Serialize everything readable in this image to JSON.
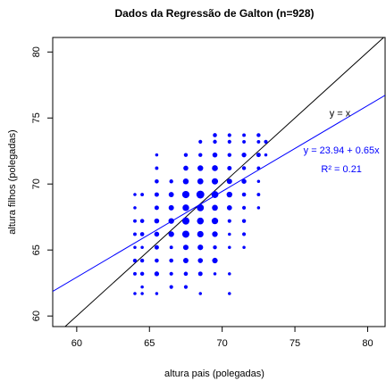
{
  "chart_data": {
    "type": "scatter",
    "title": "Dados da Regressão de Galton (n=928)",
    "x_label": "altura pais (polegadas)",
    "y_label": "altura filhos (polegadas)",
    "xlim": [
      58.35,
      81.2
    ],
    "ylim": [
      59.2,
      81.1
    ],
    "xticks": [
      60,
      65,
      70,
      75,
      80
    ],
    "yticks": [
      60,
      65,
      70,
      75,
      80
    ],
    "series": [
      {
        "color": "#0000ff",
        "x": [
          69.5,
          70.5,
          71.5,
          72.5,
          68.5,
          69.5,
          70.5,
          71.5,
          72.5,
          73,
          65.5,
          67.5,
          68.5,
          69.5,
          70.5,
          71.5,
          72.5,
          73,
          65.5,
          67.5,
          68.5,
          69.5,
          70.5,
          71.5,
          72.5,
          65.5,
          66.5,
          67.5,
          68.5,
          69.5,
          70.5,
          71.5,
          72.5,
          64,
          64.5,
          65.5,
          66.5,
          67.5,
          68.5,
          69.5,
          70.5,
          71.5,
          72.5,
          64,
          65.5,
          66.5,
          67.5,
          68.5,
          69.5,
          70.5,
          71.5,
          72.5,
          64,
          64.5,
          65.5,
          66.5,
          67.5,
          68.5,
          69.5,
          70.5,
          71.5,
          64,
          64.5,
          65.5,
          66.5,
          67.5,
          68.5,
          69.5,
          70.5,
          71.5,
          64,
          64.5,
          65.5,
          66.5,
          67.5,
          68.5,
          69.5,
          70.5,
          71.5,
          64,
          64.5,
          65.5,
          66.5,
          67.5,
          68.5,
          69.5,
          64,
          64.5,
          65.5,
          66.5,
          67.5,
          68.5,
          69.5,
          70.5,
          64.5,
          66.5,
          67.5,
          64,
          64.5,
          65.5,
          68.5,
          70.5
        ],
        "values": [
          73.7,
          73.7,
          73.7,
          73.7,
          73.2,
          73.2,
          73.2,
          73.2,
          73.2,
          73.2,
          72.2,
          72.2,
          72.2,
          72.2,
          72.2,
          72.2,
          72.2,
          72.2,
          71.2,
          71.2,
          71.2,
          71.2,
          71.2,
          71.2,
          71.2,
          70.2,
          70.2,
          70.2,
          70.2,
          70.2,
          70.2,
          70.2,
          70.2,
          69.2,
          69.2,
          69.2,
          69.2,
          69.2,
          69.2,
          69.2,
          69.2,
          69.2,
          69.2,
          68.2,
          68.2,
          68.2,
          68.2,
          68.2,
          68.2,
          68.2,
          68.2,
          68.2,
          67.2,
          67.2,
          67.2,
          67.2,
          67.2,
          67.2,
          67.2,
          67.2,
          67.2,
          66.2,
          66.2,
          66.2,
          66.2,
          66.2,
          66.2,
          66.2,
          66.2,
          66.2,
          65.2,
          65.2,
          65.2,
          65.2,
          65.2,
          65.2,
          65.2,
          65.2,
          65.2,
          64.2,
          64.2,
          64.2,
          64.2,
          64.2,
          64.2,
          64.2,
          63.2,
          63.2,
          63.2,
          63.2,
          63.2,
          63.2,
          63.2,
          63.2,
          62.2,
          62.2,
          62.2,
          61.7,
          61.7,
          61.7,
          61.7,
          61.7
        ],
        "sizes": [
          5,
          3,
          2,
          4,
          3,
          4,
          3,
          2,
          2,
          3,
          1,
          4,
          4,
          11,
          4,
          9,
          7,
          1,
          2,
          11,
          18,
          20,
          7,
          4,
          2,
          5,
          4,
          19,
          21,
          25,
          14,
          10,
          1,
          1,
          2,
          7,
          13,
          38,
          48,
          33,
          18,
          5,
          2,
          1,
          7,
          14,
          28,
          34,
          20,
          12,
          3,
          1,
          2,
          5,
          11,
          17,
          38,
          31,
          27,
          3,
          4,
          2,
          5,
          11,
          17,
          36,
          25,
          17,
          1,
          3,
          1,
          1,
          7,
          2,
          15,
          16,
          4,
          1,
          1,
          4,
          4,
          5,
          5,
          14,
          11,
          16,
          2,
          4,
          9,
          3,
          5,
          7,
          1,
          1,
          1,
          3,
          3,
          1,
          1,
          1,
          1,
          1
        ]
      }
    ],
    "lines": [
      {
        "intercept": 0,
        "slope": 1,
        "color": "#000000"
      },
      {
        "intercept": 23.94,
        "slope": 0.65,
        "color": "#0000ff"
      }
    ],
    "annotations": [
      {
        "text": "y = x",
        "x": 78.1,
        "y": 75.3,
        "color": "#000000"
      },
      {
        "text": "y = 23.94 + 0.65x",
        "x": 78.2,
        "y": 72.5,
        "color": "#0000ff"
      },
      {
        "text": "R² = 0.21",
        "x": 78.2,
        "y": 71.1,
        "color": "#0000ff"
      }
    ]
  }
}
